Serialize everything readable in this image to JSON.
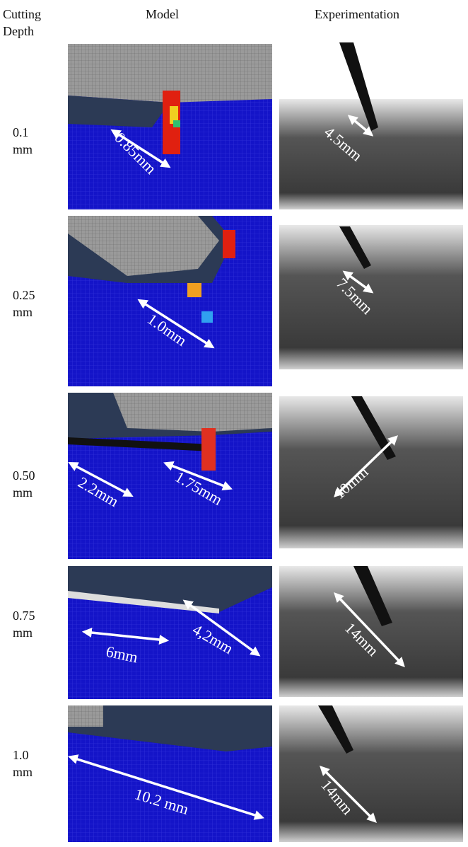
{
  "header": {
    "depth": "Cutting Depth",
    "model": "Model",
    "experiment": "Experimentation"
  },
  "rows": [
    {
      "depth": "0.1 mm",
      "model_labels": [
        "0.85mm"
      ],
      "experiment_label": "4.5mm"
    },
    {
      "depth": "0.25 mm",
      "model_labels": [
        "1.0mm"
      ],
      "experiment_label": "7.5mm"
    },
    {
      "depth": "0.50 mm",
      "model_labels": [
        "2.2mm",
        "1.75mm"
      ],
      "experiment_label": "10mm"
    },
    {
      "depth": "0.75 mm",
      "model_labels": [
        "6mm",
        "4,2mm"
      ],
      "experiment_label": "14mm"
    },
    {
      "depth": "1.0 mm",
      "model_labels": [
        "10.2 mm"
      ],
      "experiment_label": "14mm"
    }
  ]
}
